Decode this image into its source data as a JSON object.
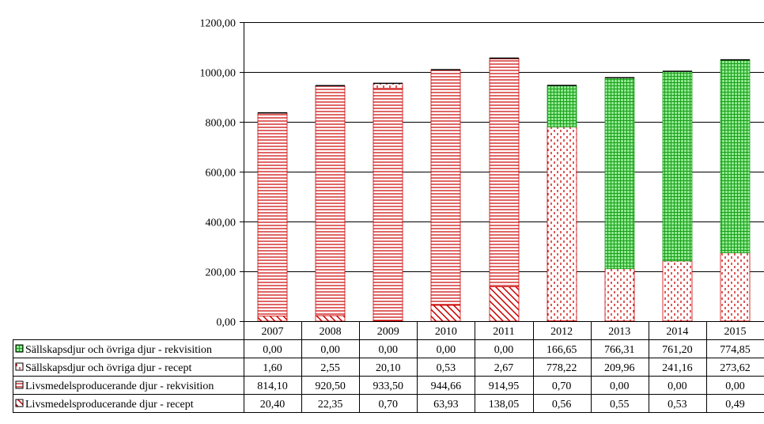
{
  "chart_data": {
    "type": "bar",
    "stacked": true,
    "categories": [
      "2007",
      "2008",
      "2009",
      "2010",
      "2011",
      "2012",
      "2013",
      "2014",
      "2015"
    ],
    "ylim": [
      0,
      1200
    ],
    "yticks": [
      0,
      200,
      400,
      600,
      800,
      1000,
      1200
    ],
    "ytick_labels": [
      "0,00",
      "200,00",
      "400,00",
      "600,00",
      "800,00",
      "1000,00",
      "1200,00"
    ],
    "grid": "horizontal",
    "legend_placement": "data-table",
    "series": [
      {
        "name": "Sällskapsdjur och övriga djur - rekvisition",
        "values": [
          0.0,
          0.0,
          0.0,
          0.0,
          0.0,
          166.65,
          766.31,
          761.2,
          774.85
        ],
        "labels": [
          "0,00",
          "0,00",
          "0,00",
          "0,00",
          "0,00",
          "166,65",
          "766,31",
          "761,20",
          "774,85"
        ],
        "color": "#33cc33",
        "pattern": "grid"
      },
      {
        "name": "Sällskapsdjur och övriga djur - recept",
        "values": [
          1.6,
          2.55,
          20.1,
          0.53,
          2.67,
          778.22,
          209.96,
          241.16,
          273.62
        ],
        "labels": [
          "1,60",
          "2,55",
          "20,10",
          "0,53",
          "2,67",
          "778,22",
          "209,96",
          "241,16",
          "273,62"
        ],
        "color": "#cc0000",
        "pattern": "dots"
      },
      {
        "name": "Livsmedelsproducerande djur - rekvisition",
        "values": [
          814.1,
          920.5,
          933.5,
          944.66,
          914.95,
          0.7,
          0.0,
          0.0,
          0.0
        ],
        "labels": [
          "814,10",
          "920,50",
          "933,50",
          "944,66",
          "914,95",
          "0,70",
          "0,00",
          "0,00",
          "0,00"
        ],
        "color": "#cc0000",
        "pattern": "horizontal"
      },
      {
        "name": "Livsmedelsproducerande djur - recept",
        "values": [
          20.4,
          22.35,
          0.7,
          63.93,
          138.05,
          0.56,
          0.55,
          0.53,
          0.49
        ],
        "labels": [
          "20,40",
          "22,35",
          "0,70",
          "63,93",
          "138,05",
          "0,56",
          "0,55",
          "0,53",
          "0,49"
        ],
        "color": "#cc0000",
        "pattern": "diagonal"
      }
    ]
  }
}
